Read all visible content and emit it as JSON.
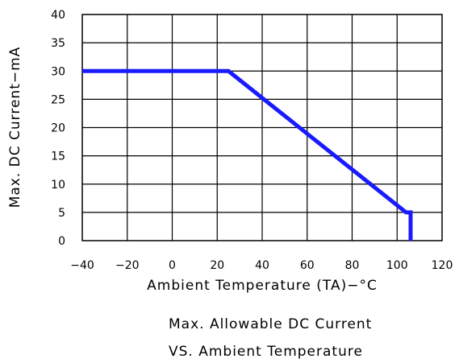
{
  "chart_data": {
    "type": "line",
    "xlabel": "Ambient Temperature (TA)−°C",
    "ylabel": "Max. DC Current−mA",
    "xlim": [
      -40,
      120
    ],
    "ylim": [
      0,
      40
    ],
    "x_ticks": [
      "−40",
      "−20",
      "0",
      "20",
      "40",
      "60",
      "80",
      "100",
      "120"
    ],
    "y_ticks": [
      "0",
      "5",
      "10",
      "15",
      "20",
      "25",
      "30",
      "35",
      "40"
    ],
    "x_tick_values": [
      -40,
      -20,
      0,
      20,
      40,
      60,
      80,
      100,
      120
    ],
    "y_tick_values": [
      0,
      5,
      10,
      15,
      20,
      25,
      30,
      35,
      40
    ],
    "grid": true,
    "series": [
      {
        "color": "#1a1aff",
        "x": [
          -40,
          25,
          104,
          106,
          106
        ],
        "y": [
          30,
          30,
          5,
          5,
          0
        ]
      }
    ]
  },
  "caption": {
    "line1": "Max. Allowable DC Current",
    "line2": "VS. Ambient Temperature"
  }
}
